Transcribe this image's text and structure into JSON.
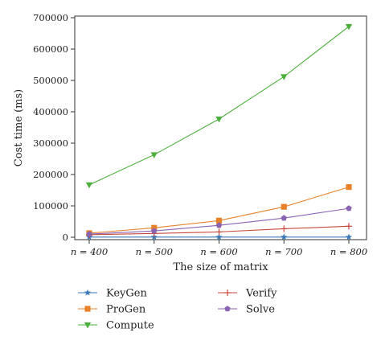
{
  "chart_data": {
    "type": "line",
    "xlabel": "The size of matrix",
    "ylabel": "Cost time (ms)",
    "categories": [
      "n = 400",
      "n = 500",
      "n = 600",
      "n = 700",
      "n = 800"
    ],
    "ylim": [
      0,
      700000
    ],
    "yticks": [
      0,
      100000,
      200000,
      300000,
      400000,
      500000,
      600000,
      700000
    ],
    "grid": false,
    "legend_position": "bottom",
    "series": [
      {
        "name": "KeyGen",
        "color": "#3a78b8",
        "marker": "star",
        "values": [
          500,
          500,
          500,
          500,
          500
        ]
      },
      {
        "name": "ProGen",
        "color": "#e8822a",
        "marker": "square",
        "values": [
          13000,
          30000,
          53000,
          97000,
          160000
        ]
      },
      {
        "name": "Compute",
        "color": "#4caf3c",
        "marker": "triangle",
        "values": [
          167000,
          263000,
          377000,
          512000,
          672000
        ]
      },
      {
        "name": "Verify",
        "color": "#c9473a",
        "marker": "plus",
        "values": [
          8000,
          12000,
          17000,
          27000,
          35000
        ]
      },
      {
        "name": "Solve",
        "color": "#8b63b3",
        "marker": "pentagon",
        "values": [
          10000,
          20000,
          38000,
          61000,
          92000
        ]
      }
    ]
  }
}
